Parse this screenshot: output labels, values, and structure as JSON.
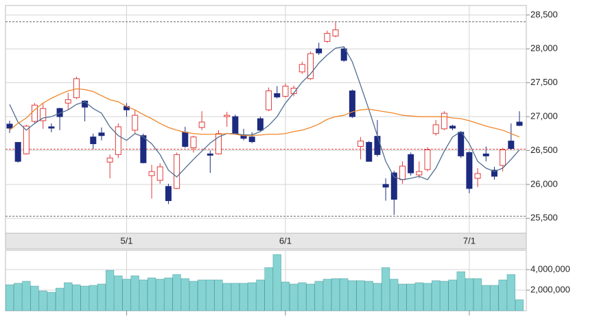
{
  "chart_data": [
    {
      "type": "candlestick",
      "categories": [
        null,
        null,
        null,
        null,
        null,
        null,
        null,
        null,
        null,
        null,
        null,
        null,
        null,
        null,
        "5/1",
        null,
        null,
        null,
        null,
        null,
        null,
        null,
        null,
        null,
        null,
        null,
        null,
        null,
        null,
        null,
        null,
        null,
        null,
        "6/1",
        null,
        null,
        null,
        null,
        null,
        null,
        null,
        null,
        null,
        null,
        null,
        null,
        null,
        null,
        null,
        null,
        null,
        null,
        null,
        null,
        null,
        "7/1",
        null,
        null,
        null,
        null,
        null,
        null
      ],
      "open": [
        26890,
        26620,
        26450,
        26930,
        26940,
        26850,
        27120,
        27200,
        27280,
        27230,
        26700,
        26760,
        26330,
        26440,
        27150,
        26800,
        26720,
        26130,
        26060,
        25970,
        25940,
        26770,
        26540,
        26840,
        26450,
        26450,
        27000,
        27000,
        26730,
        26700,
        26970,
        27100,
        27340,
        27300,
        27340,
        27660,
        27560,
        28000,
        28110,
        28190,
        28000,
        27380,
        26560,
        26620,
        26710,
        26000,
        26170,
        26070,
        26440,
        26140,
        26220,
        26750,
        26820,
        26860,
        26770,
        26470,
        26090,
        26450,
        26210,
        26280,
        26640,
        26920
      ],
      "high": [
        26940,
        26620,
        26880,
        27200,
        27200,
        26900,
        27130,
        27350,
        27590,
        27240,
        26750,
        26840,
        26440,
        26900,
        27200,
        27100,
        26750,
        26290,
        26310,
        26010,
        26470,
        26850,
        26720,
        27080,
        26500,
        26800,
        27070,
        27030,
        26820,
        26770,
        27000,
        27430,
        27450,
        27490,
        27460,
        27810,
        27960,
        28090,
        28270,
        28400,
        28030,
        27400,
        26700,
        26640,
        26950,
        26090,
        26200,
        26340,
        26470,
        26340,
        26550,
        26950,
        27080,
        26880,
        26780,
        26490,
        26240,
        26560,
        26260,
        26540,
        26900,
        27080
      ],
      "low": [
        26760,
        26320,
        26440,
        26900,
        26820,
        26770,
        26800,
        27100,
        27260,
        26930,
        26520,
        26650,
        26090,
        26390,
        27000,
        26750,
        26310,
        25790,
        26010,
        25710,
        25930,
        26540,
        26470,
        26800,
        26170,
        26440,
        26850,
        26750,
        26650,
        26610,
        26780,
        27080,
        27270,
        27280,
        27300,
        27630,
        27540,
        27910,
        28090,
        28170,
        27810,
        26980,
        26370,
        26340,
        26410,
        25760,
        25550,
        26010,
        26130,
        26090,
        26190,
        26720,
        26800,
        26800,
        26390,
        25870,
        25960,
        26340,
        26070,
        26190,
        26510,
        26860
      ],
      "close": [
        26830,
        26340,
        26860,
        27170,
        27120,
        26830,
        27000,
        27250,
        27560,
        27140,
        26600,
        26720,
        26390,
        26850,
        27100,
        27020,
        26320,
        26190,
        26260,
        25760,
        26440,
        26560,
        26700,
        26920,
        26430,
        26750,
        27020,
        26750,
        26680,
        26630,
        26800,
        27380,
        27290,
        27450,
        27420,
        27770,
        27930,
        27940,
        28230,
        28280,
        27830,
        27000,
        26640,
        26340,
        26440,
        25960,
        25780,
        26270,
        26170,
        26190,
        26510,
        26880,
        27050,
        26830,
        26420,
        25940,
        26160,
        26420,
        26120,
        26510,
        26530,
        26870
      ],
      "up_color": "#e03a3a",
      "down_color": "#1c2a80",
      "lines": [
        {
          "color": "#4f6d8f",
          "values": [
            27180,
            26920,
            26800,
            26900,
            26980,
            27000,
            27050,
            27100,
            27180,
            27220,
            27120,
            27050,
            26850,
            26720,
            26650,
            26750,
            26700,
            26600,
            26440,
            26210,
            26110,
            26240,
            26370,
            26490,
            26610,
            26700,
            26750,
            26750,
            26730,
            26730,
            26780,
            26870,
            27000,
            27200,
            27350,
            27510,
            27630,
            27790,
            27910,
            28010,
            28030,
            27810,
            27460,
            27100,
            26720,
            26340,
            26110,
            26070,
            26090,
            26120,
            26070,
            26240,
            26490,
            26700,
            26780,
            26600,
            26340,
            26240,
            26190,
            26240,
            26370,
            26510
          ]
        },
        {
          "color": "#f0862a",
          "values": [
            26800,
            26900,
            26980,
            27100,
            27200,
            27270,
            27330,
            27380,
            27410,
            27400,
            27370,
            27310,
            27250,
            27220,
            27150,
            27100,
            27030,
            26970,
            26900,
            26840,
            26800,
            26770,
            26750,
            26740,
            26740,
            26740,
            26750,
            26740,
            26720,
            26720,
            26730,
            26740,
            26740,
            26750,
            26780,
            26800,
            26840,
            26890,
            26960,
            27000,
            27020,
            27070,
            27100,
            27110,
            27090,
            27070,
            27050,
            27020,
            27010,
            27000,
            27000,
            27000,
            27000,
            26980,
            26970,
            26940,
            26900,
            26860,
            26830,
            26800,
            26750,
            26700
          ]
        }
      ],
      "hlines": [
        {
          "value": 28400,
          "color": "#666666"
        },
        {
          "value": 25530,
          "color": "#666666"
        },
        {
          "value": 26520,
          "color": "#e03a3a"
        }
      ],
      "ylim": [
        25280,
        28640
      ],
      "yticks": [
        {
          "value": 25500,
          "label": "25,500"
        },
        {
          "value": 26000,
          "label": "26,000"
        },
        {
          "value": 26500,
          "label": "26,500"
        },
        {
          "value": 27000,
          "label": "27,000"
        },
        {
          "value": 27500,
          "label": "27,500"
        },
        {
          "value": 28000,
          "label": "28,000"
        },
        {
          "value": 28500,
          "label": "28,500"
        }
      ],
      "grid": true
    },
    {
      "type": "bar",
      "values": [
        2530000,
        2670000,
        2870000,
        2400000,
        1930000,
        1800000,
        2200000,
        2730000,
        2530000,
        2400000,
        2470000,
        2600000,
        3930000,
        3400000,
        3070000,
        3400000,
        3000000,
        3200000,
        3070000,
        3200000,
        3530000,
        3130000,
        2870000,
        3000000,
        3000000,
        3000000,
        2670000,
        2670000,
        2670000,
        2730000,
        3000000,
        4200000,
        5470000,
        2800000,
        2600000,
        2730000,
        2600000,
        2870000,
        3070000,
        3130000,
        3130000,
        2930000,
        2930000,
        2870000,
        2670000,
        4200000,
        3070000,
        2600000,
        2600000,
        2730000,
        2670000,
        2930000,
        2870000,
        3000000,
        3800000,
        3130000,
        3130000,
        2470000,
        2470000,
        3000000,
        3530000,
        1070000
      ],
      "color": "#86d3d3",
      "edge_color": "#3f8f8f",
      "ylim": [
        0,
        5870000
      ],
      "yticks": [
        {
          "value": 2000000,
          "label": "2,000,000"
        },
        {
          "value": 4000000,
          "label": "4,000,000"
        }
      ],
      "grid": true
    }
  ]
}
